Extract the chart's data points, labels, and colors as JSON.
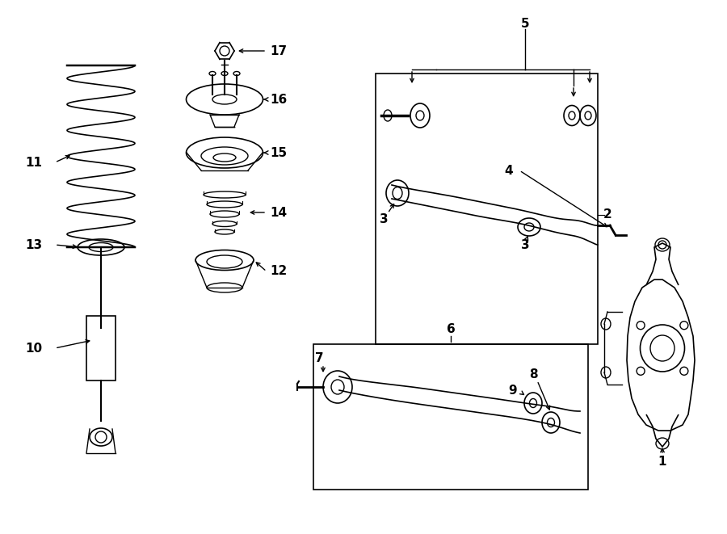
{
  "bg_color": "#ffffff",
  "lc": "#000000",
  "fig_w": 9.0,
  "fig_h": 6.61,
  "dpi": 100,
  "lw": 1.0,
  "fs": 11
}
